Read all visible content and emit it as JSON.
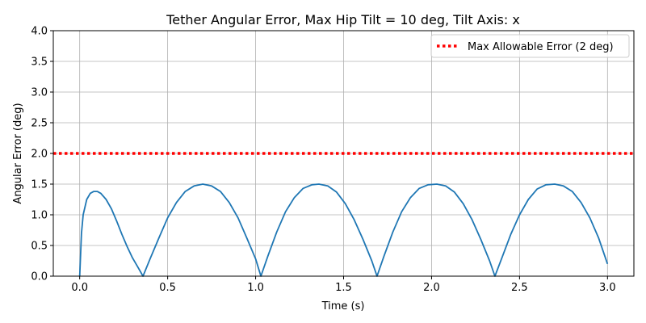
{
  "chart_data": {
    "type": "line",
    "title": "Tether Angular Error, Max Hip Tilt = 10 deg, Tilt Axis: x",
    "xlabel": "Time (s)",
    "ylabel": "Angular Error (deg)",
    "xlim": [
      -0.15,
      3.15
    ],
    "ylim": [
      0,
      4
    ],
    "xticks": [
      0.0,
      0.5,
      1.0,
      1.5,
      2.0,
      2.5,
      3.0
    ],
    "xtick_labels": [
      "0.0",
      "0.5",
      "1.0",
      "1.5",
      "2.0",
      "2.5",
      "3.0"
    ],
    "yticks": [
      0.0,
      0.5,
      1.0,
      1.5,
      2.0,
      2.5,
      3.0,
      3.5,
      4.0
    ],
    "ytick_labels": [
      "0.0",
      "0.5",
      "1.0",
      "1.5",
      "2.0",
      "2.5",
      "3.0",
      "3.5",
      "4.0"
    ],
    "grid": true,
    "legend_position": "top-right",
    "series": [
      {
        "name": "",
        "color": "#1f77b4",
        "x": [
          0.0,
          0.01,
          0.02,
          0.04,
          0.06,
          0.08,
          0.1,
          0.12,
          0.15,
          0.18,
          0.21,
          0.24,
          0.27,
          0.3,
          0.33,
          0.36,
          0.4,
          0.45,
          0.5,
          0.55,
          0.6,
          0.65,
          0.7,
          0.75,
          0.8,
          0.85,
          0.9,
          0.95,
          1.0,
          1.03,
          1.07,
          1.12,
          1.17,
          1.22,
          1.27,
          1.32,
          1.36,
          1.41,
          1.46,
          1.51,
          1.56,
          1.61,
          1.66,
          1.69,
          1.73,
          1.78,
          1.83,
          1.88,
          1.93,
          1.98,
          2.03,
          2.08,
          2.13,
          2.18,
          2.23,
          2.28,
          2.33,
          2.36,
          2.4,
          2.45,
          2.5,
          2.55,
          2.6,
          2.65,
          2.7,
          2.75,
          2.8,
          2.85,
          2.9,
          2.95,
          3.0
        ],
        "y": [
          0.0,
          0.7,
          1.0,
          1.25,
          1.35,
          1.38,
          1.38,
          1.35,
          1.25,
          1.1,
          0.9,
          0.68,
          0.48,
          0.3,
          0.15,
          0.0,
          0.28,
          0.62,
          0.95,
          1.2,
          1.38,
          1.47,
          1.5,
          1.47,
          1.38,
          1.2,
          0.95,
          0.62,
          0.28,
          0.0,
          0.33,
          0.72,
          1.05,
          1.28,
          1.43,
          1.49,
          1.5,
          1.47,
          1.37,
          1.18,
          0.92,
          0.6,
          0.25,
          0.0,
          0.33,
          0.72,
          1.05,
          1.28,
          1.43,
          1.49,
          1.5,
          1.47,
          1.37,
          1.18,
          0.92,
          0.6,
          0.25,
          0.0,
          0.3,
          0.68,
          1.0,
          1.25,
          1.42,
          1.49,
          1.5,
          1.47,
          1.38,
          1.2,
          0.95,
          0.62,
          0.2
        ]
      },
      {
        "name": "Max Allowable Error (2 deg)",
        "color": "#ff0000",
        "style": "dotted",
        "x": [
          -0.15,
          3.15
        ],
        "y": [
          2.0,
          2.0
        ]
      }
    ]
  }
}
